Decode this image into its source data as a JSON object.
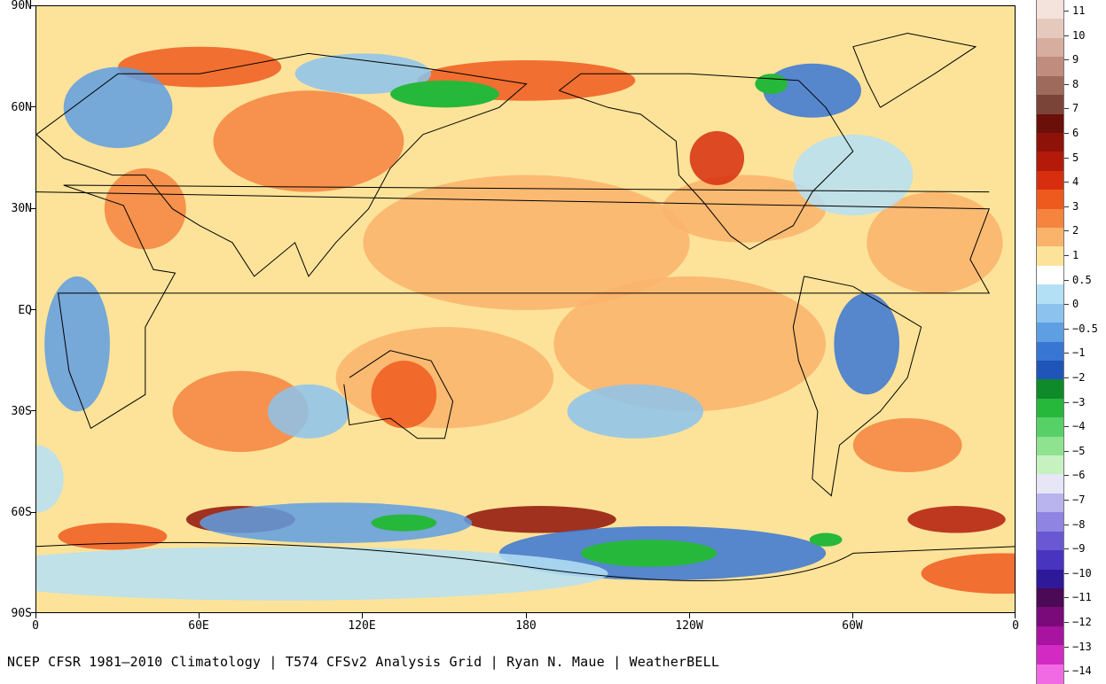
{
  "map": {
    "lat_labels": [
      "90N",
      "60N",
      "30N",
      "EQ",
      "30S",
      "60S",
      "90S"
    ],
    "lon_labels": [
      "0",
      "60E",
      "120E",
      "180",
      "120W",
      "60W",
      "0"
    ]
  },
  "credit": "NCEP CFSR 1981–2010 Climatology | T574 CFSv2 Analysis Grid | Ryan N. Maue | WeatherBELL",
  "colorbar": {
    "labels": [
      "11",
      "10",
      "9",
      "8",
      "7",
      "6",
      "5",
      "4",
      "3",
      "2",
      "1",
      "0.5",
      "0",
      "−0.5",
      "−1",
      "−2",
      "−3",
      "−4",
      "−5",
      "−6",
      "−7",
      "−8",
      "−9",
      "−10",
      "−11",
      "−12",
      "−13",
      "−14"
    ],
    "colors": [
      "#f3e3dc",
      "#e6c9bd",
      "#d6ad9f",
      "#bf8c7e",
      "#9e6a5c",
      "#7a4538",
      "#6b0f0a",
      "#8f1208",
      "#b31a0a",
      "#d62e0e",
      "#ee5a1e",
      "#f5843f",
      "#fab36b",
      "#fde399",
      "#ffffff",
      "#b4e0f5",
      "#8cc3ee",
      "#5e9ee3",
      "#3876d3",
      "#1f55b8",
      "#0f8a2b",
      "#26b83b",
      "#57d068",
      "#8fe28f",
      "#c6f2c0",
      "#e6e6f7",
      "#b9b3ee",
      "#8f84e2",
      "#6a58d3",
      "#4934c0",
      "#2e1a99",
      "#4a0a55",
      "#7a0a7a",
      "#a8139f",
      "#d22bc4",
      "#f26ae3"
    ],
    "warm_palette": [
      "#fde399",
      "#fab36b",
      "#f5843f",
      "#ee5a1e",
      "#d62e0e",
      "#b31a0a",
      "#8f1208",
      "#6b0f0a"
    ],
    "cool_palette": [
      "#b4e0f5",
      "#8cc3ee",
      "#5e9ee3",
      "#3876d3",
      "#1f55b8",
      "#26b83b",
      "#57d068",
      "#8fe28f"
    ]
  }
}
